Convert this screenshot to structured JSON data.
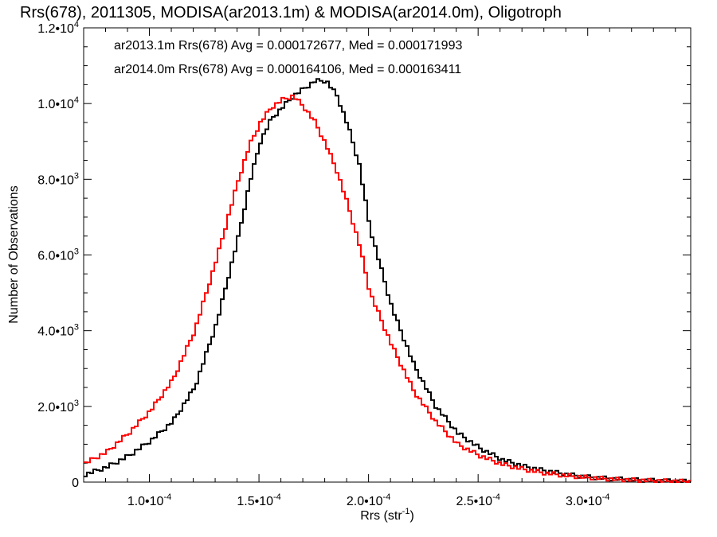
{
  "chart_data": {
    "type": "line",
    "title": "Rrs(678), 2011305, MODISA(ar2013.1m) & MODISA(ar2014.0m), Oligotroph",
    "xlabel_main": "Rrs (str",
    "xlabel_sup": "-1",
    "xlabel_end": ")",
    "ylabel": "Number of Observations",
    "xlim": [
      7e-05,
      0.000347
    ],
    "ylim": [
      0,
      12000
    ],
    "x_ticks": [
      {
        "value": 0.0001,
        "mant": "1.0•10",
        "exp": "-4"
      },
      {
        "value": 0.00015,
        "mant": "1.5•10",
        "exp": "-4"
      },
      {
        "value": 0.0002,
        "mant": "2.0•10",
        "exp": "-4"
      },
      {
        "value": 0.00025,
        "mant": "2.5•10",
        "exp": "-4"
      },
      {
        "value": 0.0003,
        "mant": "3.0•10",
        "exp": "-4"
      }
    ],
    "y_ticks": [
      {
        "value": 0,
        "mant": "0",
        "exp": ""
      },
      {
        "value": 2000,
        "mant": "2.0•10",
        "exp": "3"
      },
      {
        "value": 4000,
        "mant": "4.0•10",
        "exp": "3"
      },
      {
        "value": 6000,
        "mant": "6.0•10",
        "exp": "3"
      },
      {
        "value": 8000,
        "mant": "8.0•10",
        "exp": "3"
      },
      {
        "value": 10000,
        "mant": "1.0•10",
        "exp": "4"
      },
      {
        "value": 12000,
        "mant": "1.2•10",
        "exp": "4"
      }
    ],
    "series": [
      {
        "name": "ar2013.1m",
        "legend": "ar2013.1m Rrs(678) Avg = 0.000172677, Med = 0.000171993",
        "color": "#000000",
        "x": [
          7e-05,
          8e-05,
          9e-05,
          0.0001,
          0.00011,
          0.00012,
          0.00013,
          0.00014,
          0.000145,
          0.00015,
          0.000155,
          0.00016,
          0.000165,
          0.00017,
          0.000175,
          0.00018,
          0.000185,
          0.00019,
          0.000195,
          0.0002,
          0.00021,
          0.00022,
          0.00023,
          0.00024,
          0.00025,
          0.00026,
          0.00027,
          0.00028,
          0.00029,
          0.0003,
          0.00031,
          0.00032,
          0.00033,
          0.00034,
          0.000347
        ],
        "y": [
          200,
          400,
          700,
          1100,
          1600,
          2500,
          4200,
          6500,
          7900,
          9000,
          9600,
          9900,
          10200,
          10400,
          10600,
          10600,
          10200,
          9400,
          8400,
          6700,
          4600,
          3100,
          2000,
          1300,
          900,
          600,
          420,
          300,
          200,
          130,
          90,
          60,
          40,
          25,
          15
        ]
      },
      {
        "name": "ar2014.0m",
        "legend": "ar2014.0m Rrs(678) Avg = 0.000164106, Med = 0.000163411",
        "color": "#ff0000",
        "x": [
          7e-05,
          8e-05,
          9e-05,
          0.0001,
          0.00011,
          0.00012,
          0.00013,
          0.00014,
          0.000145,
          0.00015,
          0.000155,
          0.00016,
          0.000165,
          0.00017,
          0.000175,
          0.00018,
          0.000185,
          0.00019,
          0.000195,
          0.0002,
          0.00021,
          0.00022,
          0.00023,
          0.00024,
          0.00025,
          0.00026,
          0.00027,
          0.00028,
          0.00029,
          0.0003,
          0.00031,
          0.00032,
          0.00033,
          0.00034,
          0.000347
        ],
        "y": [
          500,
          800,
          1300,
          1900,
          2700,
          4000,
          5900,
          8000,
          8900,
          9500,
          9900,
          10100,
          10200,
          9900,
          9500,
          8900,
          8200,
          7300,
          6300,
          5000,
          3600,
          2400,
          1600,
          1000,
          700,
          480,
          340,
          240,
          170,
          120,
          80,
          55,
          35,
          22,
          14
        ]
      }
    ]
  }
}
